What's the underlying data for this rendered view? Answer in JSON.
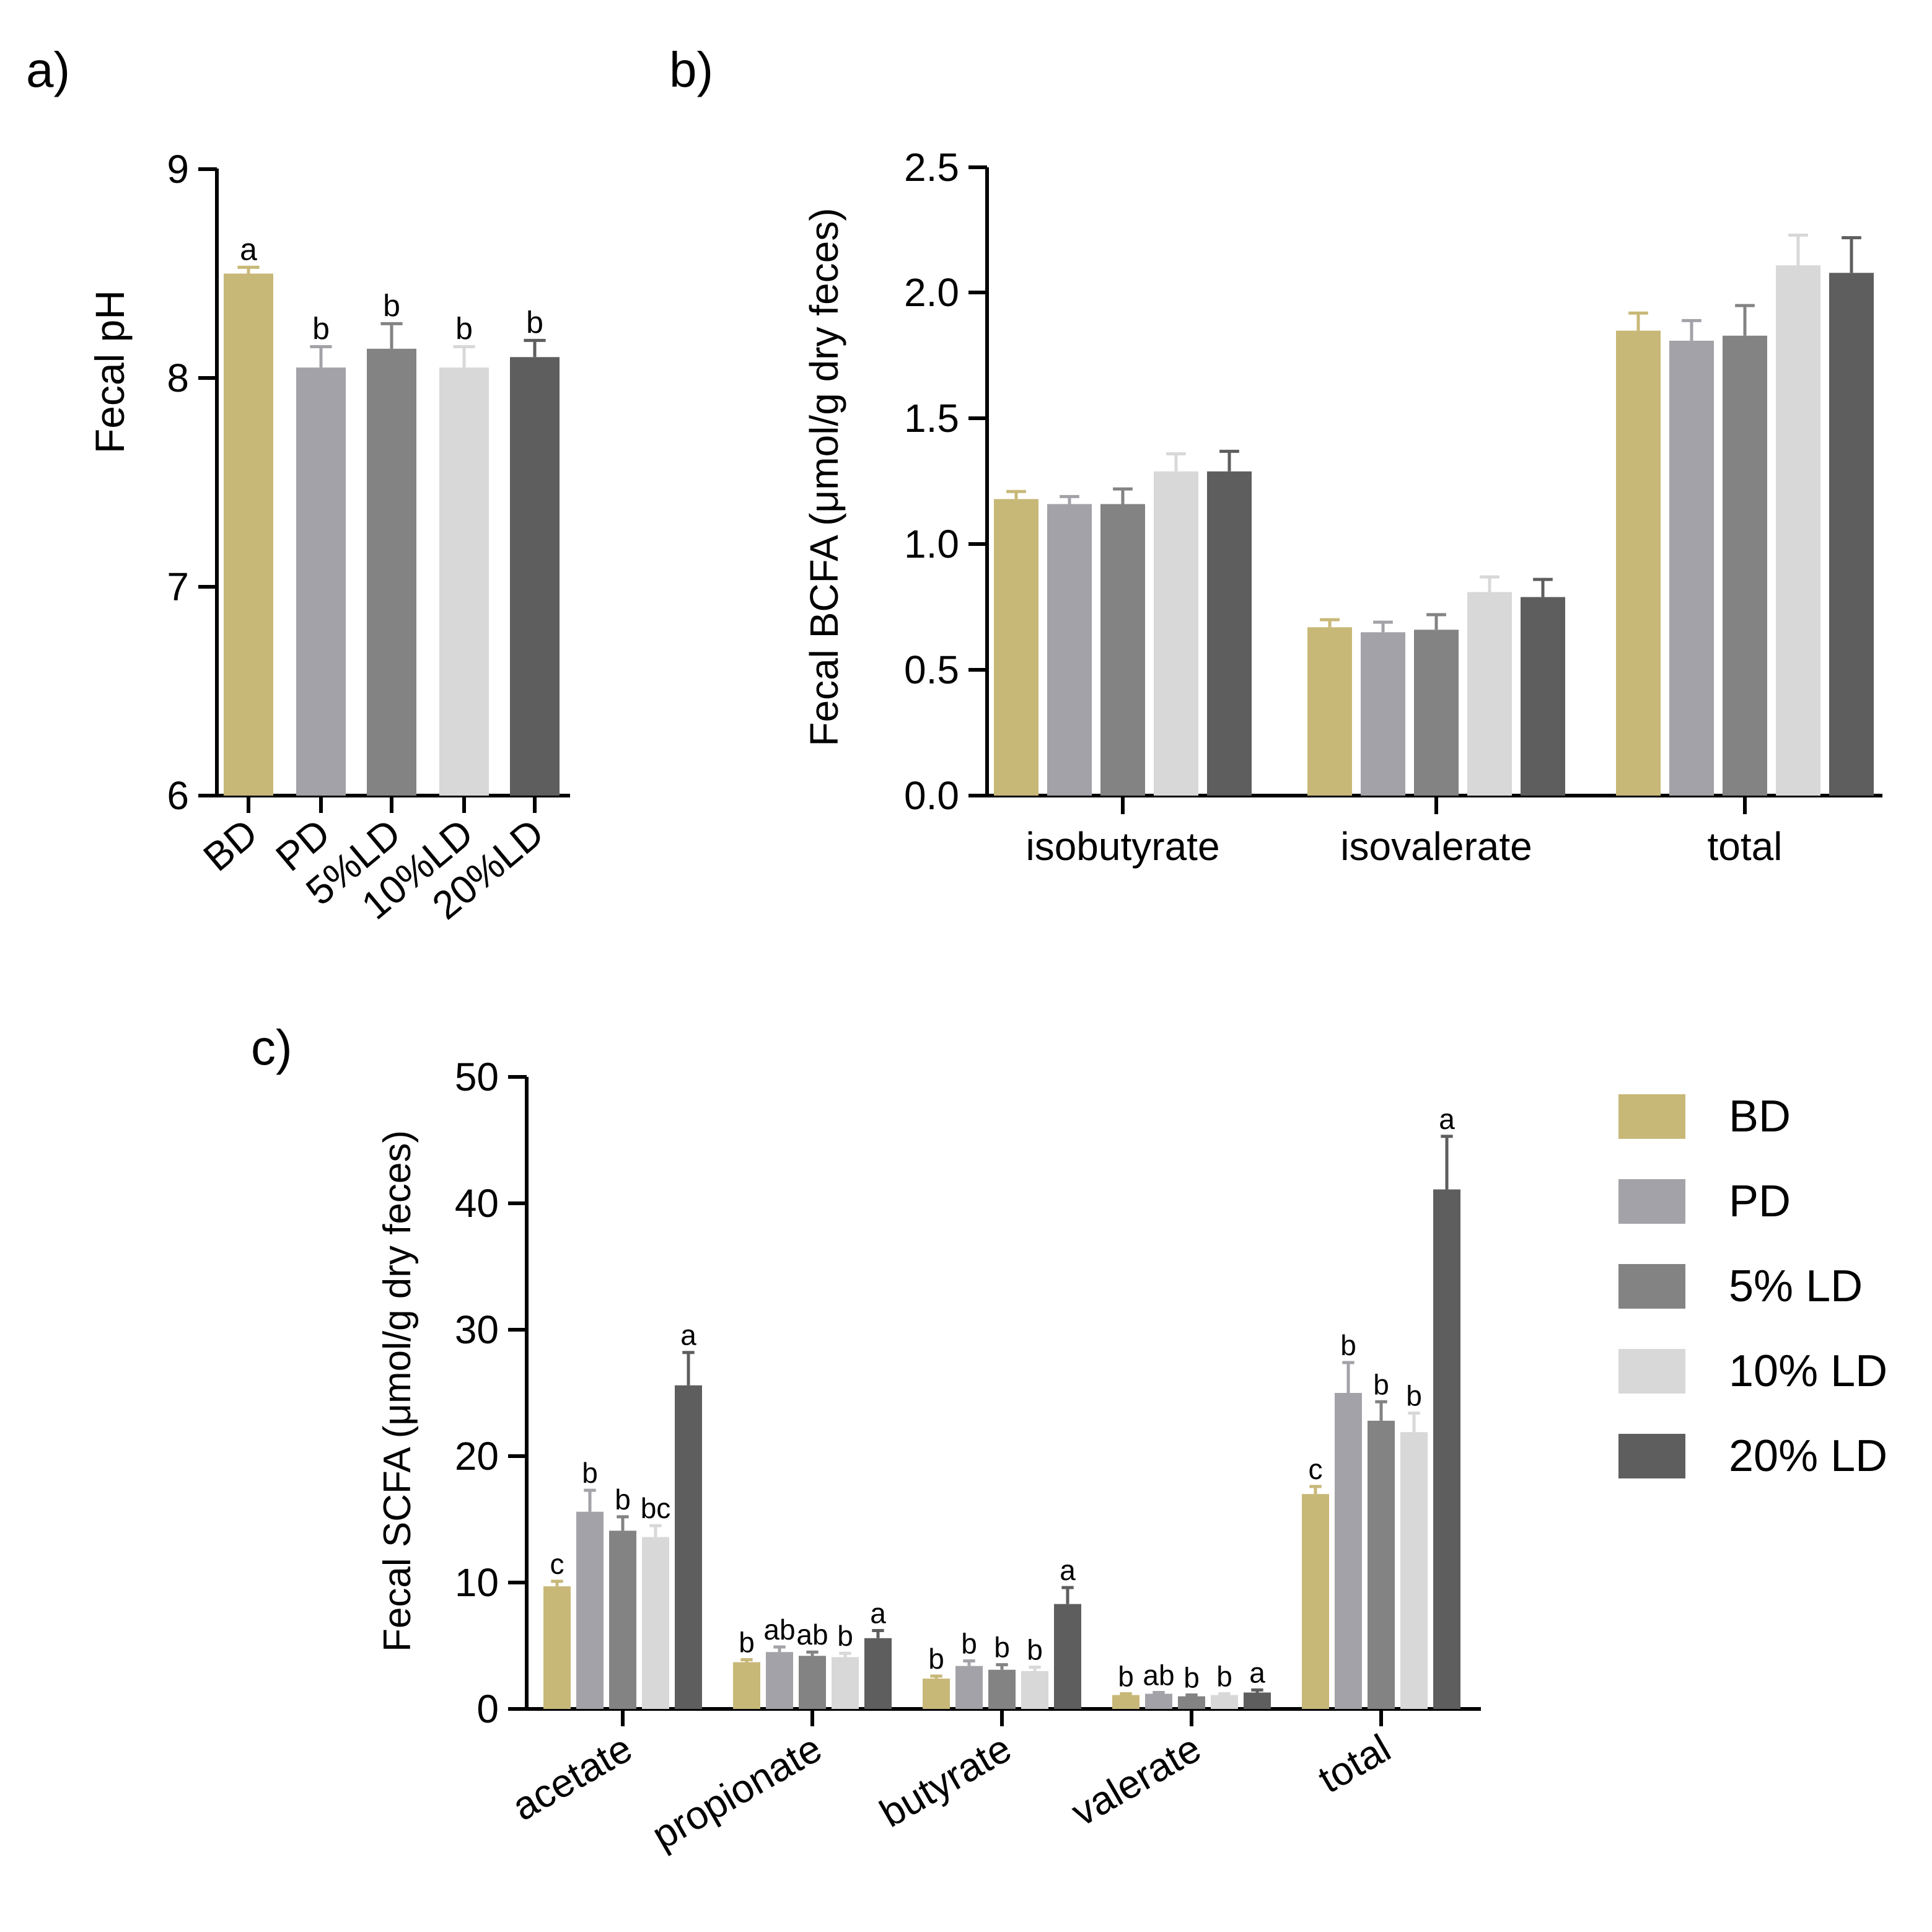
{
  "colors": {
    "BD": "#c8b878",
    "PD": "#a3a2a8",
    "5%LD": "#838383",
    "10%LD": "#d8d8d8",
    "20%LD": "#5e5e5e"
  },
  "legend": {
    "entries": [
      {
        "key": "BD",
        "label": "BD"
      },
      {
        "key": "PD",
        "label": "PD"
      },
      {
        "key": "5%LD",
        "label": "5% LD"
      },
      {
        "key": "10%LD",
        "label": "10% LD"
      },
      {
        "key": "20%LD",
        "label": "20% LD"
      }
    ]
  },
  "chart_data": [
    {
      "panel": "a)",
      "type": "bar",
      "ylabel": "Fecal pH",
      "ylim": [
        6,
        9
      ],
      "yticks": [
        "6",
        "7",
        "8",
        "9"
      ],
      "categories": [
        "BD",
        "PD",
        "5%LD",
        "10%LD",
        "20%LD"
      ],
      "values": [
        8.5,
        8.05,
        8.14,
        8.05,
        8.1
      ],
      "errors": [
        0.03,
        0.1,
        0.12,
        0.1,
        0.08
      ],
      "letters": [
        "a",
        "b",
        "b",
        "b",
        "b"
      ]
    },
    {
      "panel": "b)",
      "type": "bar",
      "ylabel": "Fecal BCFA (μmol/g dry feces)",
      "ylim": [
        0,
        2.5
      ],
      "yticks": [
        "0.0",
        "0.5",
        "1.0",
        "1.5",
        "2.0",
        "2.5"
      ],
      "categories": [
        "isobutyrate",
        "isovalerate",
        "total"
      ],
      "series": [
        {
          "name": "BD",
          "values": [
            1.18,
            0.67,
            1.85
          ],
          "errors": [
            0.03,
            0.03,
            0.07
          ]
        },
        {
          "name": "PD",
          "values": [
            1.16,
            0.65,
            1.81
          ],
          "errors": [
            0.03,
            0.04,
            0.08
          ]
        },
        {
          "name": "5%LD",
          "values": [
            1.16,
            0.66,
            1.83
          ],
          "errors": [
            0.06,
            0.06,
            0.12
          ]
        },
        {
          "name": "10%LD",
          "values": [
            1.29,
            0.81,
            2.11
          ],
          "errors": [
            0.07,
            0.06,
            0.12
          ]
        },
        {
          "name": "20%LD",
          "values": [
            1.29,
            0.79,
            2.08
          ],
          "errors": [
            0.08,
            0.07,
            0.14
          ]
        }
      ]
    },
    {
      "panel": "c)",
      "type": "bar",
      "ylabel": "Fecal SCFA (μmol/g dry feces)",
      "ylim": [
        0,
        50
      ],
      "yticks": [
        "0",
        "10",
        "20",
        "30",
        "40",
        "50"
      ],
      "categories": [
        "acetate",
        "propionate",
        "butyrate",
        "valerate",
        "total"
      ],
      "series": [
        {
          "name": "BD",
          "values": [
            9.7,
            3.7,
            2.4,
            1.1,
            17.0
          ],
          "errors": [
            0.4,
            0.2,
            0.2,
            0.1,
            0.6
          ],
          "letters": [
            "c",
            "b",
            "b",
            "b",
            "c"
          ]
        },
        {
          "name": "PD",
          "values": [
            15.6,
            4.5,
            3.4,
            1.2,
            25.0
          ],
          "errors": [
            1.7,
            0.4,
            0.4,
            0.1,
            2.4
          ],
          "letters": [
            "b",
            "ab",
            "b",
            "ab",
            "b"
          ]
        },
        {
          "name": "5%LD",
          "values": [
            14.1,
            4.2,
            3.1,
            1.0,
            22.8
          ],
          "errors": [
            1.1,
            0.3,
            0.4,
            0.1,
            1.5
          ],
          "letters": [
            "b",
            "ab",
            "b",
            "b",
            "b"
          ]
        },
        {
          "name": "10%LD",
          "values": [
            13.6,
            4.1,
            3.0,
            1.1,
            21.9
          ],
          "errors": [
            0.9,
            0.3,
            0.3,
            0.1,
            1.5
          ],
          "letters": [
            "bc",
            "b",
            "b",
            "b",
            "b"
          ]
        },
        {
          "name": "20%LD",
          "values": [
            25.6,
            5.6,
            8.3,
            1.3,
            41.1
          ],
          "errors": [
            2.6,
            0.6,
            1.3,
            0.2,
            4.2
          ],
          "letters": [
            "a",
            "a",
            "a",
            "a",
            "a"
          ]
        }
      ]
    }
  ]
}
